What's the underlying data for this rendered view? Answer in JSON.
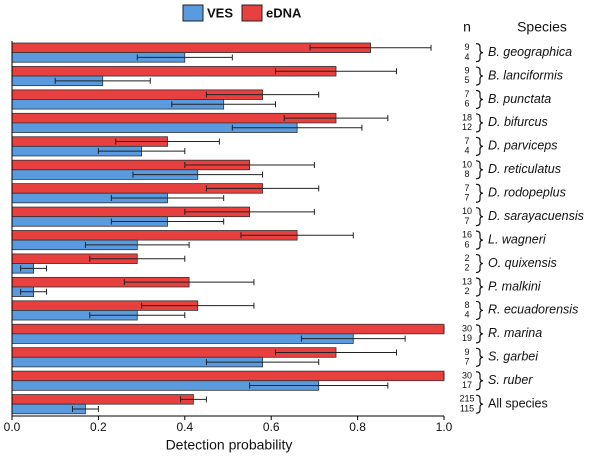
{
  "chart_data": {
    "type": "bar",
    "orientation": "horizontal",
    "x_label": "Detection probability",
    "n_header": "n",
    "category_header": "Species",
    "categories": [
      "B. geographica",
      "B. lanciformis",
      "B. punctata",
      "D. bifurcus",
      "D. parviceps",
      "D. reticulatus",
      "D. rodopeplus",
      "D. sarayacuensis",
      "L. wagneri",
      "O. quixensis",
      "P. malkini",
      "R. ecuadorensis",
      "R. marina",
      "S. garbei",
      "S. ruber",
      "All species"
    ],
    "series": [
      {
        "name": "VES",
        "color": "#5a9be0",
        "values": [
          0.4,
          0.21,
          0.49,
          0.66,
          0.3,
          0.43,
          0.36,
          0.36,
          0.29,
          0.05,
          0.05,
          0.29,
          0.79,
          0.58,
          0.71,
          0.17
        ],
        "errors": [
          0.11,
          0.11,
          0.12,
          0.15,
          0.1,
          0.15,
          0.13,
          0.13,
          0.12,
          0.03,
          0.03,
          0.11,
          0.12,
          0.13,
          0.16,
          0.03
        ],
        "n": [
          4,
          5,
          6,
          12,
          4,
          8,
          7,
          7,
          6,
          2,
          2,
          4,
          19,
          7,
          17,
          115
        ]
      },
      {
        "name": "eDNA",
        "color": "#e8403f",
        "values": [
          0.83,
          0.75,
          0.58,
          0.75,
          0.36,
          0.55,
          0.58,
          0.55,
          0.66,
          0.29,
          0.41,
          0.43,
          1.0,
          0.75,
          1.0,
          0.42
        ],
        "errors": [
          0.14,
          0.14,
          0.13,
          0.12,
          0.12,
          0.15,
          0.13,
          0.15,
          0.13,
          0.11,
          0.15,
          0.13,
          0,
          0.14,
          0,
          0.03
        ],
        "n": [
          9,
          9,
          7,
          18,
          7,
          10,
          7,
          10,
          16,
          2,
          13,
          8,
          30,
          9,
          30,
          215
        ]
      }
    ],
    "xlim": [
      0,
      1
    ],
    "xticks": [
      {
        "value": 0,
        "label": "0.0"
      },
      {
        "value": 0.2,
        "label": "0.2"
      },
      {
        "value": 0.4,
        "label": "0.4"
      },
      {
        "value": 0.6,
        "label": "0.6"
      },
      {
        "value": 0.8,
        "label": "0.8"
      },
      {
        "value": 1,
        "label": "1.0"
      }
    ],
    "italic_categories_except_last": true
  }
}
